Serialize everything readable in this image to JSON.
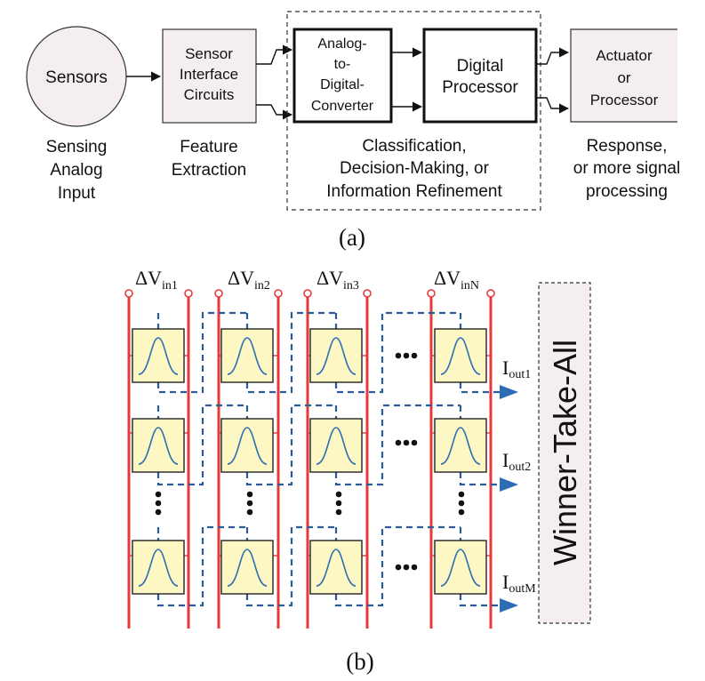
{
  "part_a": {
    "sensors_label": "Sensors",
    "sensors_caption": [
      "Sensing",
      "Analog",
      "Input"
    ],
    "interface_label": [
      "Sensor",
      "Interface",
      "Circuits"
    ],
    "interface_caption": [
      "Feature",
      "Extraction"
    ],
    "adc_label": [
      "Analog-",
      "to-",
      "Digital-",
      "Converter"
    ],
    "digital_label": [
      "Digital",
      "Processor"
    ],
    "dashed_caption": [
      "Classification,",
      "Decision-Making, or",
      "Information Refinement"
    ],
    "actuator_label": [
      "Actuator",
      "or",
      "Processor"
    ],
    "actuator_caption": [
      "Response,",
      "or more signal",
      "processing"
    ],
    "caption": "(a)"
  },
  "part_b": {
    "inputs": [
      {
        "delta": "ΔV",
        "sub": "in1"
      },
      {
        "delta": "ΔV",
        "sub": "in2"
      },
      {
        "delta": "ΔV",
        "sub": "in3"
      },
      {
        "delta": "ΔV",
        "sub": "inN"
      }
    ],
    "outputs": [
      {
        "main": "I",
        "sub": "out1"
      },
      {
        "main": "I",
        "sub": "out2"
      },
      {
        "main": "I",
        "sub": "outM"
      }
    ],
    "wta_label": "Winner-Take-All",
    "caption": "(b)",
    "colors": {
      "rail": "#e63a3a",
      "dashed": "#2b5c99",
      "cell_fill": "#fdf7c3",
      "wta_fill": "#f4eef1"
    }
  }
}
